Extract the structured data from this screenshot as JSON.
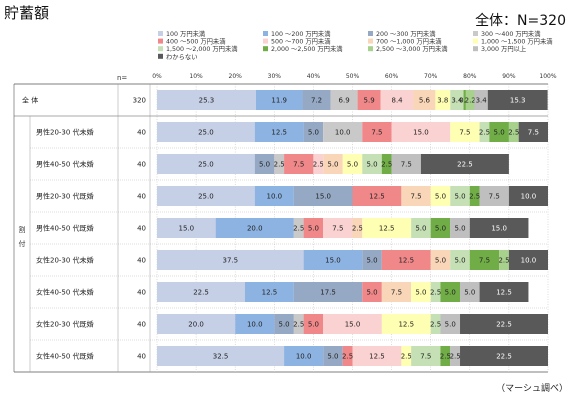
{
  "title": "貯蓄額",
  "total_label": "全体：N=320",
  "source": "（マーシュ調べ）",
  "n_header": "n=",
  "group_label": "割付",
  "chart_data": {
    "type": "bar",
    "orientation": "horizontal",
    "stacked": true,
    "percent": true,
    "xlim": [
      0,
      100
    ],
    "x_ticks": [
      "0%",
      "10%",
      "20%",
      "30%",
      "40%",
      "50%",
      "60%",
      "70%",
      "80%",
      "90%",
      "100%"
    ],
    "categories": [
      "全 体",
      "男性20-30 代未婚",
      "男性40-50 代未婚",
      "男性20-30 代既婚",
      "男性40-50 代既婚",
      "女性20-30 代未婚",
      "女性40-50 代未婚",
      "女性20-30 代既婚",
      "女性40-50 代既婚"
    ],
    "n": [
      320,
      40,
      40,
      40,
      40,
      40,
      40,
      40,
      40
    ],
    "series": [
      {
        "name": "100 万円未満",
        "color": "#c5cfe6",
        "values": [
          25.3,
          25.0,
          25.0,
          25.0,
          15.0,
          37.5,
          22.5,
          20.0,
          32.5
        ]
      },
      {
        "name": "100 ～200 万円未満",
        "color": "#8db3e2",
        "values": [
          11.9,
          12.5,
          0,
          10.0,
          20.0,
          15.0,
          12.5,
          10.0,
          10.0
        ]
      },
      {
        "name": "200 ～300 万円未満",
        "color": "#95a9c5",
        "values": [
          7.2,
          5.0,
          5.0,
          15.0,
          0,
          5.0,
          17.5,
          5.0,
          5.0
        ]
      },
      {
        "name": "300 ～400 万円未満",
        "color": "#c9c9c9",
        "values": [
          6.9,
          10.0,
          2.5,
          0,
          2.5,
          0,
          0,
          2.5,
          0
        ]
      },
      {
        "name": "400 ～500 万円未満",
        "color": "#f0888a",
        "values": [
          5.9,
          7.5,
          7.5,
          12.5,
          5.0,
          12.5,
          5.0,
          5.0,
          2.5
        ]
      },
      {
        "name": "500 ～700 万円未満",
        "color": "#fbd2d2",
        "values": [
          8.4,
          15.0,
          2.5,
          0,
          7.5,
          0,
          0,
          15.0,
          12.5
        ]
      },
      {
        "name": "700 ～1,000 万円未満",
        "color": "#f9d6b8",
        "values": [
          5.6,
          0,
          5.0,
          7.5,
          2.5,
          5.0,
          7.5,
          0,
          0
        ]
      },
      {
        "name": "1,000 ～1,500 万円未満",
        "color": "#ffffb3",
        "values": [
          3.8,
          7.5,
          5.0,
          5.0,
          12.5,
          0,
          5.0,
          12.5,
          2.5
        ]
      },
      {
        "name": "1,500 ～2,000 万円未満",
        "color": "#c5e0b4",
        "values": [
          3.4,
          2.5,
          5.0,
          5.0,
          5.0,
          5.0,
          2.5,
          2.5,
          7.5
        ]
      },
      {
        "name": "2,000 ～2,500 万円未満",
        "color": "#70ad47",
        "values": [
          0.6,
          5.0,
          2.5,
          2.5,
          5.0,
          7.5,
          5.0,
          0,
          2.5
        ]
      },
      {
        "name": "2,500 ～3,000 万円未満",
        "color": "#a9d18e",
        "values": [
          2.2,
          2.5,
          0,
          0,
          0,
          2.5,
          0,
          0,
          0
        ]
      },
      {
        "name": "3,000 万円以上",
        "color": "#bfbfbf",
        "values": [
          3.4,
          0,
          7.5,
          7.5,
          5.0,
          0,
          5.0,
          5.0,
          2.5
        ]
      },
      {
        "name": "わからない",
        "color": "#595959",
        "values": [
          15.3,
          7.5,
          22.5,
          10.0,
          15.0,
          10.0,
          12.5,
          22.5,
          22.5
        ]
      }
    ],
    "legend": "top-right",
    "grid": true
  }
}
